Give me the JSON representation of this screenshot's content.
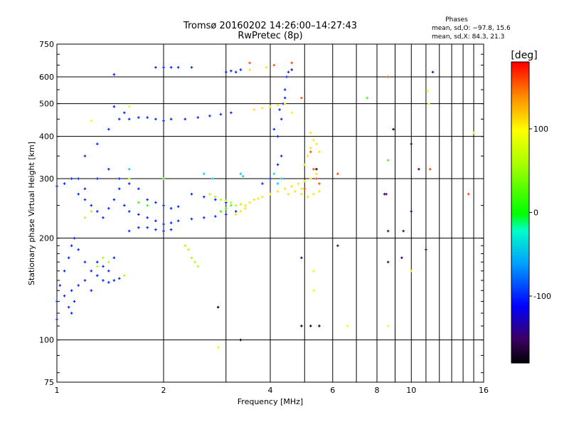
{
  "header": {
    "title": "Tromsø 20160202 14:26:00–14:27:43",
    "subtitle": "RwPretec (8p)",
    "stats_title": "Phases",
    "stats_o": "mean, sd,O: −97.8, 15.6",
    "stats_x": "mean, sd,X:  84.3, 21.3"
  },
  "chart_data": {
    "type": "scatter",
    "xlabel": "Frequency [MHz]",
    "ylabel": "Stationary phase Virtual Height [km]",
    "xscale": "log",
    "yscale": "log",
    "xlim": [
      1,
      16
    ],
    "ylim": [
      75,
      750
    ],
    "x_ticks": [
      1,
      2,
      4,
      6,
      8,
      10,
      16
    ],
    "x_tick_labels": [
      "1",
      "2",
      "4",
      "6",
      "8",
      "10",
      "16"
    ],
    "x_grid": [
      2,
      3,
      4,
      5,
      6,
      7,
      8,
      9,
      10,
      11,
      12,
      13,
      14,
      15
    ],
    "y_ticks": [
      75,
      100,
      200,
      300,
      400,
      500,
      600,
      750
    ],
    "y_tick_labels": [
      "75",
      "100",
      "200",
      "300",
      "400",
      "500",
      "600",
      "750"
    ],
    "y_grid": [
      100,
      200,
      300,
      400,
      500,
      600
    ],
    "grid": true,
    "colorbar": {
      "label": "[deg]",
      "range": [
        -180,
        180
      ],
      "ticks": [
        100,
        0,
        -100
      ],
      "tick_labels": [
        "100",
        "0",
        "-100"
      ]
    },
    "series": [
      {
        "phase": -100,
        "points": [
          [
            1.0,
            115
          ],
          [
            1.0,
            130
          ],
          [
            1.02,
            145
          ],
          [
            1.05,
            160
          ],
          [
            1.08,
            175
          ],
          [
            1.1,
            190
          ],
          [
            1.12,
            200
          ],
          [
            1.15,
            185
          ],
          [
            1.2,
            170
          ],
          [
            1.25,
            160
          ],
          [
            1.3,
            155
          ],
          [
            1.35,
            150
          ],
          [
            1.4,
            148
          ],
          [
            1.45,
            150
          ],
          [
            1.5,
            152
          ],
          [
            1.05,
            135
          ],
          [
            1.1,
            140
          ],
          [
            1.15,
            145
          ],
          [
            1.2,
            150
          ],
          [
            1.25,
            140
          ],
          [
            1.3,
            170
          ],
          [
            1.35,
            165
          ],
          [
            1.4,
            160
          ],
          [
            1.45,
            175
          ],
          [
            1.08,
            125
          ],
          [
            1.1,
            120
          ],
          [
            1.12,
            130
          ]
        ]
      },
      {
        "phase": -100,
        "points": [
          [
            1.0,
            285
          ],
          [
            1.05,
            290
          ],
          [
            1.1,
            300
          ],
          [
            1.15,
            270
          ],
          [
            1.2,
            260
          ],
          [
            1.25,
            250
          ],
          [
            1.3,
            240
          ],
          [
            1.35,
            230
          ],
          [
            1.4,
            245
          ],
          [
            1.45,
            260
          ],
          [
            1.5,
            280
          ],
          [
            1.55,
            250
          ],
          [
            1.6,
            240
          ],
          [
            1.7,
            235
          ],
          [
            1.8,
            230
          ],
          [
            1.9,
            225
          ],
          [
            2.0,
            220
          ],
          [
            2.1,
            222
          ],
          [
            2.2,
            225
          ],
          [
            2.4,
            228
          ],
          [
            2.6,
            230
          ],
          [
            2.8,
            232
          ],
          [
            3.0,
            235
          ],
          [
            3.2,
            240
          ],
          [
            1.2,
            350
          ],
          [
            1.3,
            380
          ],
          [
            1.4,
            420
          ],
          [
            1.5,
            450
          ],
          [
            1.45,
            490
          ],
          [
            1.55,
            470
          ],
          [
            1.6,
            450
          ],
          [
            1.7,
            455
          ],
          [
            1.8,
            455
          ],
          [
            1.9,
            450
          ],
          [
            2.0,
            445
          ],
          [
            2.1,
            450
          ],
          [
            2.3,
            450
          ],
          [
            2.5,
            455
          ],
          [
            2.7,
            460
          ],
          [
            2.9,
            465
          ],
          [
            3.1,
            470
          ],
          [
            1.3,
            300
          ],
          [
            1.4,
            320
          ],
          [
            1.5,
            300
          ],
          [
            1.6,
            290
          ],
          [
            1.7,
            280
          ],
          [
            1.8,
            260
          ],
          [
            1.9,
            255
          ],
          [
            2.0,
            250
          ],
          [
            2.1,
            245
          ],
          [
            2.2,
            248
          ],
          [
            2.4,
            270
          ],
          [
            2.6,
            265
          ],
          [
            2.8,
            260
          ],
          [
            3.0,
            255
          ],
          [
            1.9,
            640
          ],
          [
            2.0,
            640
          ],
          [
            2.1,
            640
          ],
          [
            2.2,
            640
          ],
          [
            2.4,
            640
          ],
          [
            3.0,
            620
          ],
          [
            3.1,
            625
          ],
          [
            3.2,
            620
          ],
          [
            3.3,
            630
          ],
          [
            4.2,
            400
          ],
          [
            4.3,
            450
          ],
          [
            4.35,
            500
          ],
          [
            4.4,
            550
          ],
          [
            4.45,
            600
          ],
          [
            4.5,
            620
          ],
          [
            4.3,
            350
          ],
          [
            4.2,
            330
          ],
          [
            4.0,
            300
          ],
          [
            3.8,
            290
          ],
          [
            4.1,
            420
          ],
          [
            4.25,
            480
          ],
          [
            4.4,
            520
          ],
          [
            1.45,
            610
          ],
          [
            1.15,
            300
          ],
          [
            1.2,
            280
          ],
          [
            1.6,
            210
          ],
          [
            1.7,
            215
          ],
          [
            1.8,
            215
          ],
          [
            1.9,
            212
          ],
          [
            2.0,
            210
          ],
          [
            2.1,
            212
          ]
        ]
      },
      {
        "phase": 110,
        "points": [
          [
            3.6,
            480
          ],
          [
            3.8,
            485
          ],
          [
            4.0,
            490
          ],
          [
            4.2,
            495
          ],
          [
            4.4,
            500
          ],
          [
            3.4,
            250
          ],
          [
            3.5,
            255
          ],
          [
            3.6,
            260
          ],
          [
            3.7,
            262
          ],
          [
            3.8,
            265
          ],
          [
            4.0,
            270
          ],
          [
            4.2,
            275
          ],
          [
            4.4,
            280
          ],
          [
            4.6,
            285
          ],
          [
            4.8,
            290
          ],
          [
            5.0,
            295
          ],
          [
            5.2,
            300
          ],
          [
            5.4,
            310
          ],
          [
            5.0,
            330
          ],
          [
            5.1,
            350
          ],
          [
            5.2,
            370
          ],
          [
            5.3,
            390
          ],
          [
            5.2,
            410
          ],
          [
            5.4,
            380
          ],
          [
            5.5,
            360
          ],
          [
            3.3,
            240
          ],
          [
            3.4,
            245
          ],
          [
            3.2,
            235
          ],
          [
            4.5,
            270
          ],
          [
            4.7,
            275
          ],
          [
            4.9,
            280
          ],
          [
            3.5,
            630
          ],
          [
            3.9,
            640
          ],
          [
            4.9,
            270
          ],
          [
            5.1,
            265
          ],
          [
            5.3,
            270
          ],
          [
            5.5,
            275
          ]
        ]
      },
      {
        "phase": 160,
        "points": [
          [
            3.5,
            660
          ],
          [
            4.1,
            650
          ],
          [
            4.6,
            660
          ],
          [
            5.2,
            360
          ],
          [
            5.3,
            320
          ],
          [
            5.4,
            300
          ],
          [
            5.5,
            290
          ],
          [
            4.9,
            520
          ],
          [
            5.0,
            280
          ],
          [
            8.6,
            600
          ],
          [
            11.3,
            320
          ],
          [
            14.5,
            270
          ],
          [
            6.2,
            310
          ]
        ]
      },
      {
        "phase": 60,
        "points": [
          [
            2.3,
            190
          ],
          [
            2.35,
            185
          ],
          [
            2.4,
            175
          ],
          [
            2.45,
            170
          ],
          [
            2.5,
            165
          ],
          [
            1.55,
            155
          ],
          [
            1.4,
            170
          ],
          [
            1.3,
            165
          ],
          [
            1.35,
            175
          ],
          [
            2.7,
            270
          ],
          [
            2.8,
            265
          ],
          [
            2.9,
            260
          ],
          [
            3.0,
            258
          ],
          [
            3.1,
            255
          ],
          [
            3.2,
            250
          ],
          [
            3.3,
            252
          ],
          [
            1.2,
            230
          ],
          [
            1.25,
            240
          ],
          [
            1.6,
            300
          ]
        ]
      },
      {
        "phase": 20,
        "points": [
          [
            1.7,
            255
          ],
          [
            1.8,
            250
          ],
          [
            2.9,
            240
          ],
          [
            3.0,
            245
          ],
          [
            3.1,
            250
          ],
          [
            7.5,
            520
          ],
          [
            8.6,
            340
          ],
          [
            2.0,
            300
          ]
        ]
      },
      {
        "phase": -40,
        "points": [
          [
            1.6,
            320
          ],
          [
            2.6,
            310
          ],
          [
            2.75,
            300
          ],
          [
            3.3,
            310
          ],
          [
            3.35,
            305
          ],
          [
            4.1,
            310
          ],
          [
            4.2,
            290
          ],
          [
            4.3,
            300
          ]
        ]
      },
      {
        "phase": -150,
        "points": [
          [
            6.2,
            190
          ],
          [
            8.4,
            270
          ],
          [
            8.6,
            210
          ],
          [
            9.5,
            210
          ],
          [
            10.0,
            380
          ],
          [
            10.5,
            320
          ],
          [
            11.5,
            620
          ],
          [
            8.5,
            270
          ],
          [
            8.6,
            170
          ],
          [
            9.4,
            175
          ],
          [
            11.0,
            185
          ],
          [
            10.0,
            240
          ],
          [
            4.6,
            630
          ],
          [
            4.9,
            175
          ]
        ]
      },
      {
        "phase": -180,
        "points": [
          [
            4.9,
            110
          ],
          [
            5.2,
            110
          ],
          [
            5.5,
            110
          ],
          [
            2.85,
            125
          ],
          [
            3.3,
            100
          ],
          [
            5.4,
            320
          ],
          [
            8.9,
            420
          ]
        ]
      },
      {
        "phase": 90,
        "points": [
          [
            6.6,
            110
          ],
          [
            8.6,
            110
          ],
          [
            10.0,
            160
          ],
          [
            11.1,
            545
          ],
          [
            11.2,
            500
          ],
          [
            15.0,
            410
          ],
          [
            5.3,
            160
          ],
          [
            5.3,
            140
          ],
          [
            2.85,
            95
          ],
          [
            4.6,
            470
          ],
          [
            1.25,
            445
          ],
          [
            1.6,
            490
          ]
        ]
      }
    ]
  }
}
